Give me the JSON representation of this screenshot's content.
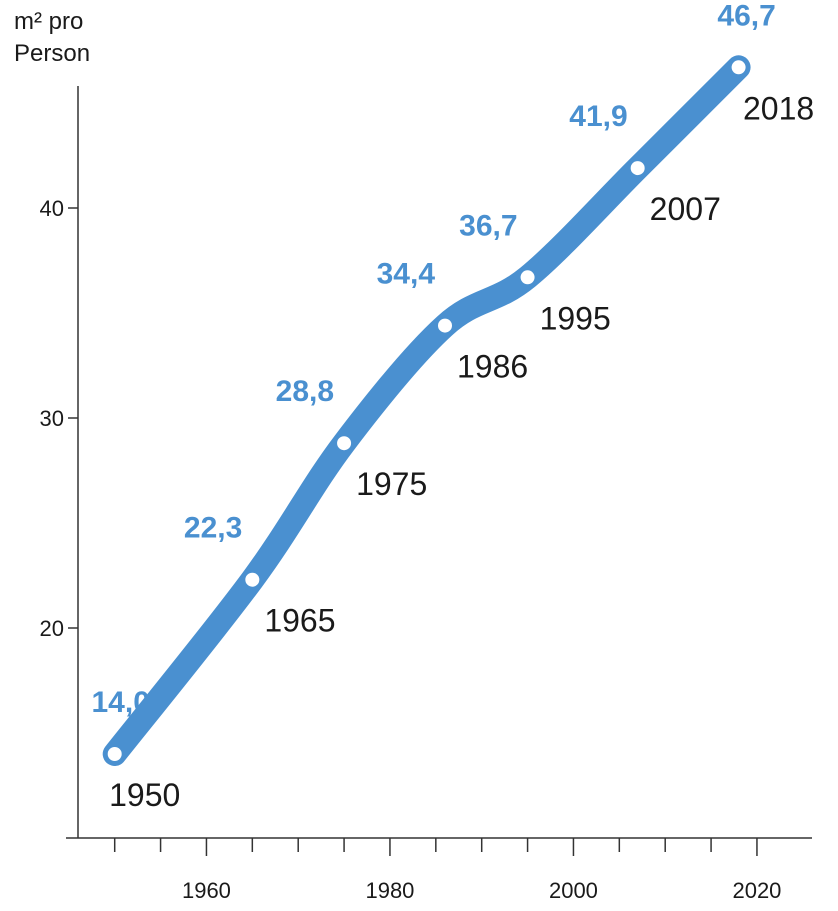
{
  "chart_data": {
    "type": "line",
    "ylabel_line1": "m² pro",
    "ylabel_line2": "Person",
    "xlabel": "",
    "title": "",
    "grid": false,
    "xlim": [
      1946,
      2026
    ],
    "ylim": [
      10,
      48
    ],
    "x_ticks": [
      1960,
      1980,
      2000,
      2020
    ],
    "x_minor_step": 5,
    "y_ticks": [
      20,
      30,
      40
    ],
    "color": "#4a90d0",
    "points": [
      {
        "x": 1950,
        "y": 14.0,
        "value_label": "14,0",
        "year_label": "1950"
      },
      {
        "x": 1965,
        "y": 22.3,
        "value_label": "22,3",
        "year_label": "1965"
      },
      {
        "x": 1975,
        "y": 28.8,
        "value_label": "28,8",
        "year_label": "1975"
      },
      {
        "x": 1986,
        "y": 34.4,
        "value_label": "34,4",
        "year_label": "1986"
      },
      {
        "x": 1995,
        "y": 36.7,
        "value_label": "36,7",
        "year_label": "1995"
      },
      {
        "x": 2007,
        "y": 41.9,
        "value_label": "41,9",
        "year_label": "2007"
      },
      {
        "x": 2018,
        "y": 46.7,
        "value_label": "46,7",
        "year_label": "2018"
      }
    ]
  }
}
